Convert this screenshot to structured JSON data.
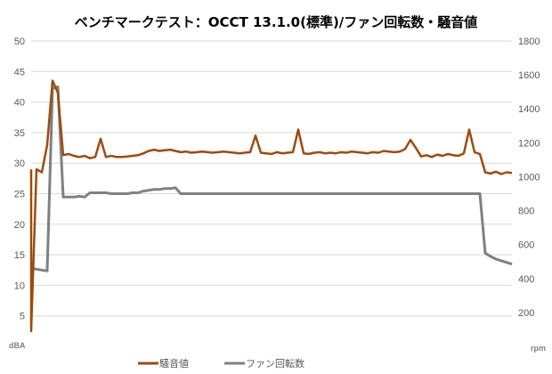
{
  "chart_data": {
    "type": "line",
    "title": "ベンチマークテスト：OCCT 13.1.0(標準)/ファン回転数・騒音値",
    "y_left": {
      "label": "dBA",
      "range": [
        0,
        50
      ],
      "ticks": [
        5,
        10,
        15,
        20,
        25,
        30,
        35,
        40,
        45,
        50
      ]
    },
    "y_right": {
      "label": "rpm",
      "range": [
        0,
        1800
      ],
      "ticks": [
        200,
        400,
        600,
        800,
        1000,
        1200,
        1400,
        1600,
        1800
      ]
    },
    "grid": true,
    "legend_position": "bottom",
    "x": [
      0,
      1,
      2,
      3,
      4,
      5,
      6,
      7,
      8,
      9,
      10,
      11,
      12,
      13,
      14,
      15,
      16,
      17,
      18,
      19,
      20,
      21,
      22,
      23,
      24,
      25,
      26,
      27,
      28,
      29,
      30,
      31,
      32,
      33,
      34,
      35,
      36,
      37,
      38,
      39,
      40,
      41,
      42,
      43,
      44,
      45,
      46,
      47,
      48,
      49,
      50,
      51,
      52,
      53,
      54,
      55,
      56,
      57,
      58,
      59,
      60,
      61,
      62,
      63,
      64,
      65,
      66,
      67,
      68,
      69,
      70,
      71,
      72,
      73,
      74,
      75,
      76,
      77,
      78,
      79,
      80,
      81,
      82,
      83,
      84,
      85,
      86,
      87,
      88,
      89,
      90
    ],
    "series": [
      {
        "name": "騒音値",
        "axis": "left",
        "color": "#9e4b0e",
        "values": [
          2.5,
          29,
          28.5,
          33,
          43.5,
          41.5,
          31.3,
          31.5,
          31.2,
          31,
          31.2,
          30.8,
          31,
          34,
          31,
          31.2,
          31,
          31,
          31.1,
          31.2,
          31.3,
          31.6,
          32,
          32.2,
          32,
          32.1,
          32.2,
          32,
          31.8,
          31.9,
          31.7,
          31.8,
          31.9,
          31.8,
          31.7,
          31.8,
          31.9,
          31.8,
          31.7,
          31.6,
          31.7,
          31.8,
          34.5,
          31.7,
          31.6,
          31.5,
          31.8,
          31.6,
          31.7,
          31.8,
          35.5,
          31.6,
          31.5,
          31.7,
          31.8,
          31.6,
          31.7,
          31.6,
          31.8,
          31.7,
          31.9,
          31.8,
          31.7,
          31.6,
          31.8,
          31.7,
          32,
          31.9,
          31.8,
          31.9,
          32.3,
          33.8,
          32.5,
          31.1,
          31.3,
          31,
          31.4,
          31.2,
          31.5,
          31.3,
          31.2,
          31.6,
          35.5,
          31.8,
          31.5,
          28.5,
          28.3,
          28.6,
          28.2,
          28.5,
          28.4
        ]
      },
      {
        "name": "ファン回転数",
        "axis": "right",
        "color": "#808080",
        "values": [
          460,
          455,
          450,
          445,
          1520,
          1530,
          880,
          880,
          880,
          885,
          880,
          905,
          905,
          905,
          905,
          900,
          900,
          900,
          900,
          905,
          905,
          915,
          920,
          925,
          925,
          930,
          930,
          935,
          900,
          900,
          900,
          900,
          900,
          900,
          900,
          900,
          900,
          900,
          900,
          900,
          900,
          900,
          900,
          900,
          900,
          900,
          900,
          900,
          900,
          900,
          900,
          900,
          900,
          900,
          900,
          900,
          900,
          900,
          900,
          900,
          900,
          900,
          900,
          900,
          900,
          900,
          900,
          900,
          900,
          900,
          900,
          900,
          900,
          900,
          900,
          900,
          900,
          900,
          900,
          900,
          900,
          900,
          900,
          900,
          900,
          550,
          530,
          515,
          505,
          495,
          485
        ]
      }
    ]
  }
}
